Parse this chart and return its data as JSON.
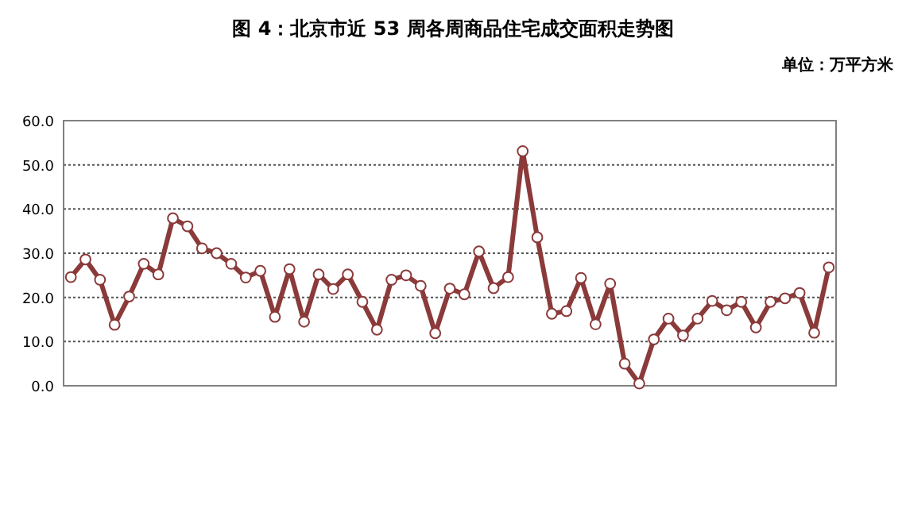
{
  "chart_data": {
    "type": "line",
    "title": "图 4：北京市近 53 周各周商品住宅成交面积走势图",
    "annotations": [
      "单位：万平方米"
    ],
    "categories": [
      null,
      null,
      null,
      null,
      null,
      null,
      null,
      null,
      null,
      null,
      null,
      null,
      null,
      null,
      null,
      null,
      null,
      null,
      null,
      null,
      null,
      null,
      null,
      null,
      null,
      null,
      null,
      null,
      null,
      null,
      null,
      null,
      null,
      null,
      null,
      null,
      null,
      null,
      null,
      null,
      null,
      null,
      null,
      null,
      null,
      null,
      null,
      null,
      null,
      null,
      null,
      null,
      null
    ],
    "series": [
      {
        "color": "#8b3a3a",
        "values": [
          24.6,
          28.6,
          24,
          13.8,
          20.2,
          27.6,
          25.2,
          37.9,
          36.1,
          31.1,
          30,
          27.6,
          24.5,
          26,
          15.6,
          26.4,
          14.5,
          25.2,
          21.9,
          25.2,
          19,
          12.7,
          24,
          25,
          22.6,
          11.9,
          22,
          20.7,
          30.4,
          22.1,
          24.6,
          53.1,
          33.6,
          16.3,
          16.9,
          24.4,
          13.9,
          23.1,
          5,
          0.5,
          10.5,
          15.2,
          11.4,
          15.2,
          19.2,
          17.1,
          19,
          13.2,
          19,
          19.8,
          21,
          12,
          26.8
        ]
      }
    ],
    "ylim": [
      0,
      60
    ],
    "yticks": [
      {
        "value": 0,
        "label": "0.0"
      },
      {
        "value": 10,
        "label": "10.0"
      },
      {
        "value": 20,
        "label": "20.0"
      },
      {
        "value": 30,
        "label": "30.0"
      },
      {
        "value": 40,
        "label": "40.0"
      },
      {
        "value": 50,
        "label": "50.0"
      },
      {
        "value": 60,
        "label": "60.0"
      }
    ],
    "grid": "y",
    "marker": "circle",
    "line_style": "solid"
  }
}
